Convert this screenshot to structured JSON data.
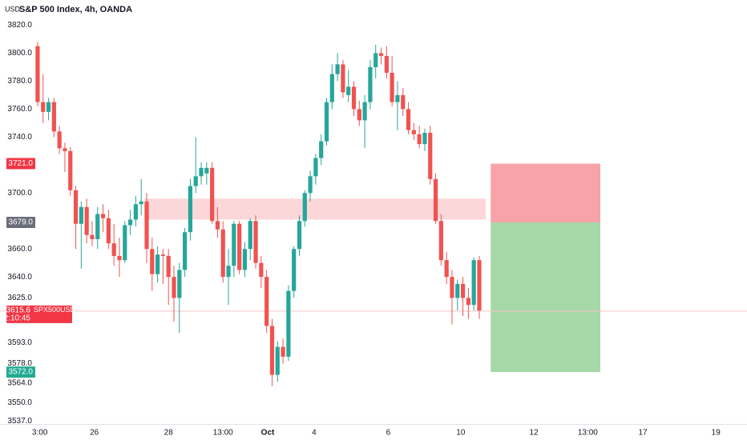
{
  "chart_data": {
    "type": "candlestick",
    "currency": "USD",
    "title": "S&P 500 Index, 4h, OANDA",
    "up_color": "#26a69a",
    "down_color": "#ef5350",
    "open": [
      3805,
      3765,
      3758,
      3765,
      3744,
      3732,
      3730,
      3702,
      3678,
      3690,
      3670,
      3667,
      3685,
      3682,
      3664,
      3655,
      3652,
      3677,
      3681,
      3692,
      3694,
      3660,
      3642,
      3656,
      3655,
      3640,
      3625,
      3645,
      3672,
      3705,
      3712,
      3714,
      3718,
      3680,
      3674,
      3640,
      3648,
      3678,
      3645,
      3660,
      3680,
      3650,
      3640,
      3605,
      3570,
      3590,
      3583,
      3630,
      3660,
      3680,
      3700,
      3712,
      3725,
      3737,
      3765,
      3785,
      3792,
      3770,
      3776,
      3760,
      3752,
      3765,
      3790,
      3800,
      3798,
      3786,
      3765,
      3770,
      3760,
      3745,
      3742,
      3735,
      3743,
      3710,
      3680,
      3652,
      3640,
      3625,
      3635,
      3625,
      3620,
      3652
    ],
    "high": [
      3808,
      3785,
      3768,
      3768,
      3748,
      3736,
      3733,
      3705,
      3694,
      3696,
      3680,
      3690,
      3692,
      3688,
      3678,
      3668,
      3680,
      3688,
      3698,
      3710,
      3700,
      3668,
      3662,
      3660,
      3660,
      3648,
      3650,
      3675,
      3710,
      3740,
      3722,
      3722,
      3722,
      3690,
      3680,
      3660,
      3680,
      3680,
      3665,
      3682,
      3684,
      3655,
      3645,
      3610,
      3594,
      3596,
      3634,
      3662,
      3684,
      3702,
      3716,
      3728,
      3742,
      3768,
      3792,
      3800,
      3795,
      3788,
      3780,
      3766,
      3770,
      3795,
      3806,
      3804,
      3805,
      3798,
      3780,
      3775,
      3765,
      3750,
      3748,
      3746,
      3748,
      3714,
      3685,
      3658,
      3645,
      3638,
      3640,
      3632,
      3654,
      3655
    ],
    "low": [
      3762,
      3750,
      3752,
      3740,
      3728,
      3715,
      3698,
      3660,
      3646,
      3664,
      3662,
      3660,
      3672,
      3660,
      3648,
      3640,
      3650,
      3670,
      3676,
      3684,
      3650,
      3630,
      3636,
      3635,
      3620,
      3608,
      3600,
      3640,
      3666,
      3700,
      3706,
      3706,
      3678,
      3668,
      3636,
      3620,
      3640,
      3642,
      3640,
      3652,
      3646,
      3632,
      3600,
      3562,
      3565,
      3578,
      3580,
      3625,
      3655,
      3676,
      3694,
      3706,
      3720,
      3734,
      3760,
      3780,
      3768,
      3765,
      3755,
      3748,
      3732,
      3760,
      3782,
      3792,
      3782,
      3762,
      3745,
      3755,
      3742,
      3738,
      3732,
      3730,
      3706,
      3678,
      3648,
      3635,
      3606,
      3616,
      3612,
      3610,
      3616,
      3610
    ],
    "close": [
      3765,
      3758,
      3765,
      3744,
      3732,
      3730,
      3702,
      3678,
      3690,
      3670,
      3667,
      3685,
      3682,
      3664,
      3655,
      3652,
      3677,
      3681,
      3692,
      3694,
      3660,
      3642,
      3656,
      3655,
      3640,
      3625,
      3645,
      3672,
      3705,
      3712,
      3718,
      3718,
      3680,
      3674,
      3640,
      3648,
      3678,
      3645,
      3660,
      3680,
      3650,
      3640,
      3605,
      3570,
      3590,
      3583,
      3630,
      3660,
      3680,
      3700,
      3712,
      3725,
      3737,
      3765,
      3785,
      3792,
      3772,
      3776,
      3760,
      3752,
      3765,
      3790,
      3800,
      3798,
      3786,
      3765,
      3770,
      3760,
      3745,
      3742,
      3735,
      3743,
      3710,
      3680,
      3652,
      3640,
      3625,
      3635,
      3625,
      3620,
      3652,
      3616
    ],
    "xlim": [
      -6.9,
      130.1
    ],
    "xticks": [
      {
        "value": 0.4,
        "label": "3:00"
      },
      {
        "value": 10.4,
        "label": "26"
      },
      {
        "value": 24,
        "label": "28"
      },
      {
        "value": 34,
        "label": "13:00"
      },
      {
        "value": 42.2,
        "label": "Oct"
      },
      {
        "value": 50.7,
        "label": "4"
      },
      {
        "value": 64.3,
        "label": "6"
      },
      {
        "value": 77.6,
        "label": "10"
      },
      {
        "value": 91,
        "label": "12"
      },
      {
        "value": 100.9,
        "label": "13:00"
      },
      {
        "value": 111,
        "label": "17"
      },
      {
        "value": 124.4,
        "label": "19"
      }
    ],
    "ylim": [
      3532,
      3838
    ],
    "yticks": [
      {
        "value": 3820,
        "label": "3820.0"
      },
      {
        "value": 3800,
        "label": "3800.0"
      },
      {
        "value": 3780,
        "label": "3780.0"
      },
      {
        "value": 3760,
        "label": "3760.0"
      },
      {
        "value": 3740,
        "label": "3740.0"
      },
      {
        "value": 3700,
        "label": "3700.0"
      },
      {
        "value": 3660,
        "label": "3660.0"
      },
      {
        "value": 3640,
        "label": "3640.0"
      },
      {
        "value": 3625,
        "label": "3625.0"
      },
      {
        "value": 3593,
        "label": "3593.0"
      },
      {
        "value": 3578,
        "label": "3578.0"
      },
      {
        "value": 3564,
        "label": "3564.0"
      },
      {
        "value": 3550,
        "label": "3550.0"
      },
      {
        "value": 3537,
        "label": "3537.0"
      }
    ],
    "zone": {
      "x": [
        19.6,
        82.2
      ],
      "y": [
        3681,
        3696
      ],
      "color": "rgba(242,54,69,0.2)"
    },
    "position": {
      "x": [
        83.1,
        103.2
      ],
      "stop": {
        "value": 3721,
        "label": "3721.0"
      },
      "entry": {
        "value": 3679,
        "label": "3679.0"
      },
      "target": {
        "value": 3572,
        "label": "3572.0"
      },
      "stop_color": "#f7a3a8",
      "target_color": "#a6d8a8"
    },
    "last_price": {
      "value": 3615.6,
      "label": "3615.6",
      "symbol": "SPX500USD",
      "countdown": "02:10:45"
    }
  }
}
